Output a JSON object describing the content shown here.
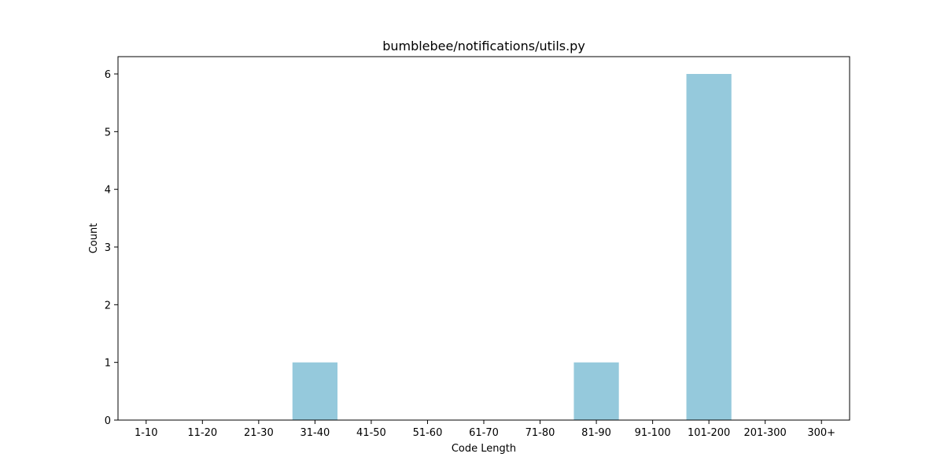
{
  "chart_data": {
    "type": "bar",
    "title": "bumblebee/notifications/utils.py",
    "xlabel": "Code Length",
    "ylabel": "Count",
    "categories": [
      "1-10",
      "11-20",
      "21-30",
      "31-40",
      "41-50",
      "51-60",
      "61-70",
      "71-80",
      "81-90",
      "91-100",
      "101-200",
      "201-300",
      "300+"
    ],
    "values": [
      0,
      0,
      0,
      1,
      0,
      0,
      0,
      0,
      1,
      0,
      6,
      0,
      0
    ],
    "ylim": [
      0,
      6.3
    ],
    "yticks": [
      0,
      1,
      2,
      3,
      4,
      5,
      6
    ],
    "bar_color": "#95c9dc",
    "grid": false
  }
}
